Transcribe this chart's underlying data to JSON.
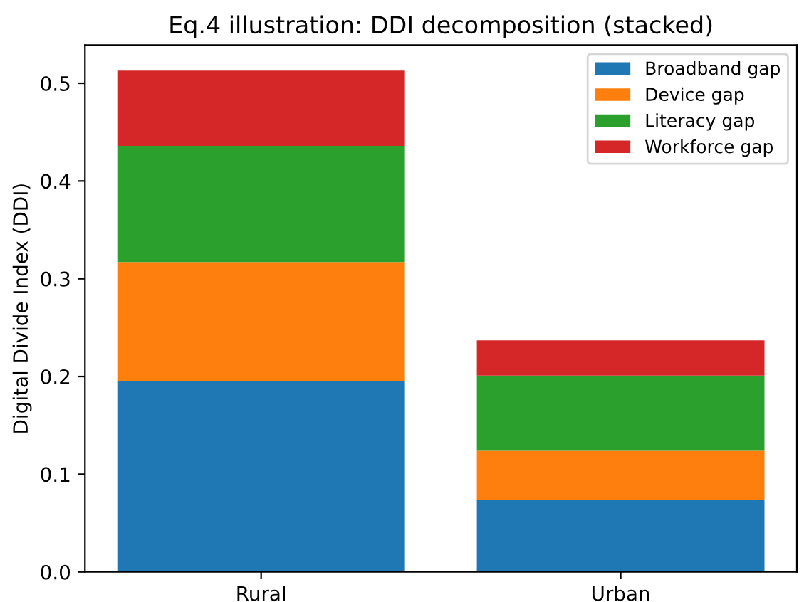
{
  "chart_data": {
    "type": "bar",
    "title": "Eq.4 illustration: DDI decomposition (stacked)",
    "ylabel": "Digital Divide Index (DDI)",
    "categories": [
      "Rural",
      "Urban"
    ],
    "stacked": true,
    "series": [
      {
        "name": "Broadband gap",
        "color": "#1f77b4",
        "values": [
          0.195,
          0.074
        ]
      },
      {
        "name": "Device gap",
        "color": "#ff7f0e",
        "values": [
          0.122,
          0.05
        ]
      },
      {
        "name": "Literacy gap",
        "color": "#2ca02c",
        "values": [
          0.119,
          0.077
        ]
      },
      {
        "name": "Workforce gap",
        "color": "#d62728",
        "values": [
          0.077,
          0.036
        ]
      }
    ],
    "ylim": [
      0,
      0.539
    ],
    "yticks": [
      {
        "value": 0,
        "label": "0.0"
      },
      0.1,
      0.2,
      0.3,
      0.4,
      0.5
    ],
    "legend": "top right",
    "grid": false
  }
}
